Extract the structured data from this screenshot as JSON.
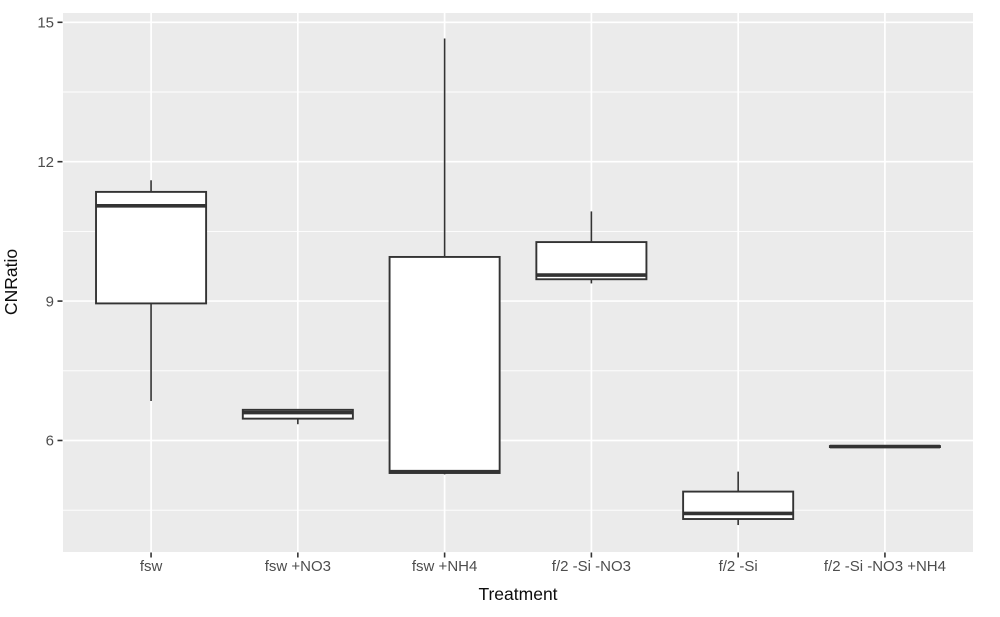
{
  "figure": {
    "kind": "ggplot-style boxplot"
  },
  "chart_data": {
    "type": "boxplot",
    "title": "",
    "xlabel": "Treatment",
    "ylabel": "CNRatio",
    "categories": [
      "fsw",
      "fsw +NO3",
      "fsw +NH4",
      "f/2 -Si -NO3",
      "f/2 -Si",
      "f/2 -Si -NO3 +NH4"
    ],
    "y_ticks": [
      6,
      9,
      12,
      15
    ],
    "y_minor_ticks": [
      4.5,
      7.5,
      10.5,
      13.5
    ],
    "ylim": [
      3.6,
      15.2
    ],
    "grid": true,
    "legend": "none",
    "series": [
      {
        "category": "fsw",
        "min": 6.85,
        "q1": 8.95,
        "median": 11.05,
        "q3": 11.35,
        "max": 11.6
      },
      {
        "category": "fsw +NO3",
        "min": 6.35,
        "q1": 6.47,
        "median": 6.6,
        "q3": 6.66,
        "max": 6.66
      },
      {
        "category": "fsw +NH4",
        "min": 5.27,
        "q1": 5.3,
        "median": 5.33,
        "q3": 9.95,
        "max": 14.65
      },
      {
        "category": "f/2 -Si -NO3",
        "min": 9.38,
        "q1": 9.47,
        "median": 9.56,
        "q3": 10.27,
        "max": 10.93
      },
      {
        "category": "f/2 -Si",
        "min": 4.18,
        "q1": 4.31,
        "median": 4.43,
        "q3": 4.9,
        "max": 5.33
      },
      {
        "category": "f/2 -Si -NO3 +NH4",
        "min": 5.86,
        "q1": 5.86,
        "median": 5.87,
        "q3": 5.88,
        "max": 5.88
      }
    ],
    "colors": {
      "figure_background": "#FFFFFF",
      "panel_background": "#EBEBEB",
      "grid": "#FFFFFF",
      "box_fill": "#FFFFFF",
      "box_stroke": "#333333",
      "tick_mark": "#333333",
      "tick_text": "#4D4D4D",
      "title_text": "#0d0d0d"
    }
  }
}
